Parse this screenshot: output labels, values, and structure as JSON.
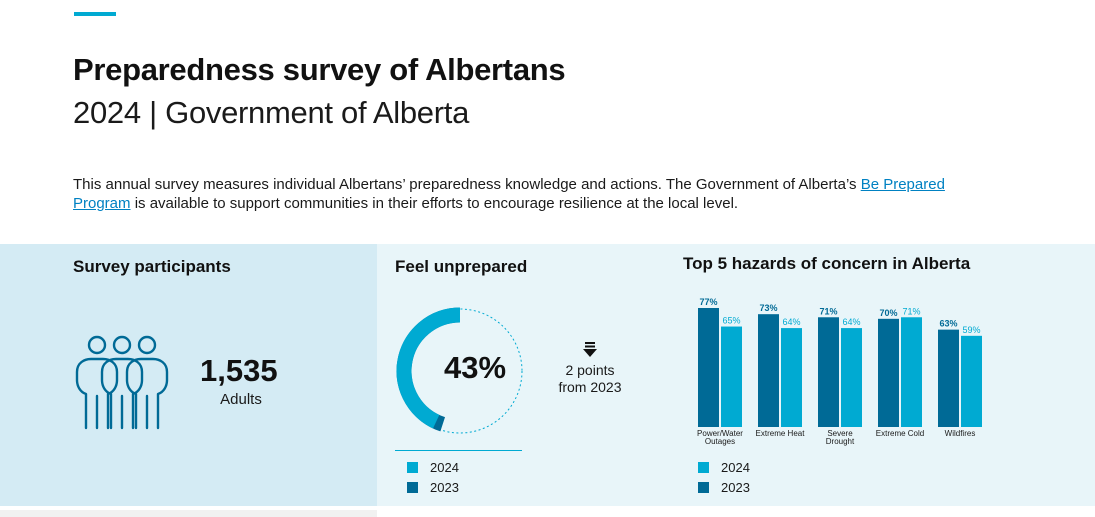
{
  "header": {
    "title": "Preparedness survey of Albertans",
    "subtitle": "2024 | Government of Alberta"
  },
  "intro": {
    "text_before": "This annual survey measures individual Albertans’ preparedness knowledge and actions. The Government of Alberta’s ",
    "link_text": "Be Prepared Program",
    "text_after": " is available to support communities in their efforts to encourage resilience at the local level."
  },
  "participants": {
    "heading": "Survey participants",
    "count": "1,535",
    "count_label": "Adults",
    "icon": "people-group-icon"
  },
  "unprepared": {
    "heading": "Feel unprepared",
    "percent_label": "43%",
    "change_line1": "2 points",
    "change_line2": "from 2023",
    "change_icon": "down-arrow-icon",
    "legend": [
      {
        "label": "2024",
        "color": "#00aad2"
      },
      {
        "label": "2023",
        "color": "#006a96"
      }
    ]
  },
  "hazards": {
    "heading": "Top 5 hazards of concern in Alberta",
    "legend": [
      {
        "label": "2024",
        "color": "#00aad2"
      },
      {
        "label": "2023",
        "color": "#006a96"
      }
    ]
  },
  "colors": {
    "accent": "#00aad2",
    "dark": "#006a96",
    "panel_dark": "#d4ebf4",
    "panel_light": "#e8f5f9"
  },
  "chart_data": [
    {
      "type": "pie",
      "labels": [
        "2024",
        "2023"
      ],
      "values": [
        43,
        45
      ],
      "center_label": "43%"
    },
    {
      "type": "bar",
      "title": "Top 5 hazards of concern in Alberta",
      "categories": [
        "Power/Water Outages",
        "Extreme Heat",
        "Severe Drought",
        "Extreme Cold",
        "Wildfires"
      ],
      "category_lines": [
        [
          "Power/Water",
          "Outages"
        ],
        [
          "Extreme Heat"
        ],
        [
          "Severe",
          "Drought"
        ],
        [
          "Extreme Cold"
        ],
        [
          "Wildfires"
        ]
      ],
      "series": [
        {
          "name": "2023",
          "values": [
            77,
            73,
            71,
            70,
            63
          ],
          "labels": [
            "77%",
            "73%",
            "71%",
            "70%",
            "63%"
          ],
          "color": "#006a96"
        },
        {
          "name": "2024",
          "values": [
            65,
            64,
            64,
            71,
            59
          ],
          "labels": [
            "65%",
            "64%",
            "64%",
            "71%",
            "59%"
          ],
          "color": "#00aad2"
        }
      ],
      "ylim": [
        0,
        100
      ]
    }
  ]
}
